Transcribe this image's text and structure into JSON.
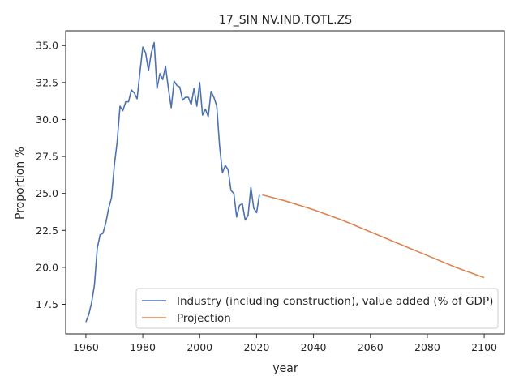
{
  "chart_data": {
    "type": "line",
    "title": "17_SIN NV.IND.TOTL.ZS",
    "xlabel": "year",
    "ylabel": "Proportion %",
    "xlim": [
      1952.9,
      2107.1
    ],
    "ylim": [
      15.5,
      36.0
    ],
    "x_ticks": [
      "1960",
      "1980",
      "2000",
      "2020",
      "2040",
      "2060",
      "2080",
      "2100"
    ],
    "y_ticks": [
      "17.5",
      "20.0",
      "22.5",
      "25.0",
      "27.5",
      "30.0",
      "32.5",
      "35.0"
    ],
    "grid": false,
    "legend_position": "lower-right",
    "series": [
      {
        "name": "Industry (including construction), value added (% of GDP)",
        "color": "#4c72b0",
        "x": [
          1960,
          1961,
          1962,
          1963,
          1964,
          1965,
          1966,
          1967,
          1968,
          1969,
          1970,
          1971,
          1972,
          1973,
          1974,
          1975,
          1976,
          1977,
          1978,
          1979,
          1980,
          1981,
          1982,
          1983,
          1984,
          1985,
          1986,
          1987,
          1988,
          1989,
          1990,
          1991,
          1992,
          1993,
          1994,
          1995,
          1996,
          1997,
          1998,
          1999,
          2000,
          2001,
          2002,
          2003,
          2004,
          2005,
          2006,
          2007,
          2008,
          2009,
          2010,
          2011,
          2012,
          2013,
          2014,
          2015,
          2016,
          2017,
          2018,
          2019,
          2020,
          2021
        ],
        "y": [
          16.3,
          16.8,
          17.6,
          18.8,
          21.3,
          22.2,
          22.3,
          23.0,
          24.0,
          24.7,
          26.9,
          28.5,
          30.9,
          30.6,
          31.2,
          31.2,
          32.0,
          31.8,
          31.4,
          33.2,
          34.9,
          34.5,
          33.3,
          34.5,
          35.2,
          32.1,
          33.1,
          32.7,
          33.6,
          32.1,
          30.8,
          32.6,
          32.3,
          32.2,
          31.3,
          31.5,
          31.5,
          31.0,
          32.1,
          30.9,
          32.5,
          30.3,
          30.7,
          30.2,
          31.9,
          31.5,
          30.9,
          28.2,
          26.4,
          26.9,
          26.6,
          25.2,
          25.0,
          23.4,
          24.2,
          24.3,
          23.2,
          23.5,
          25.4,
          24.0,
          23.7,
          24.9
        ]
      },
      {
        "name": "Projection",
        "color": "#dd8452",
        "x": [
          2022,
          2030,
          2040,
          2050,
          2060,
          2070,
          2080,
          2090,
          2100
        ],
        "y": [
          24.9,
          24.5,
          23.9,
          23.2,
          22.4,
          21.6,
          20.8,
          20.0,
          19.3
        ]
      }
    ]
  }
}
